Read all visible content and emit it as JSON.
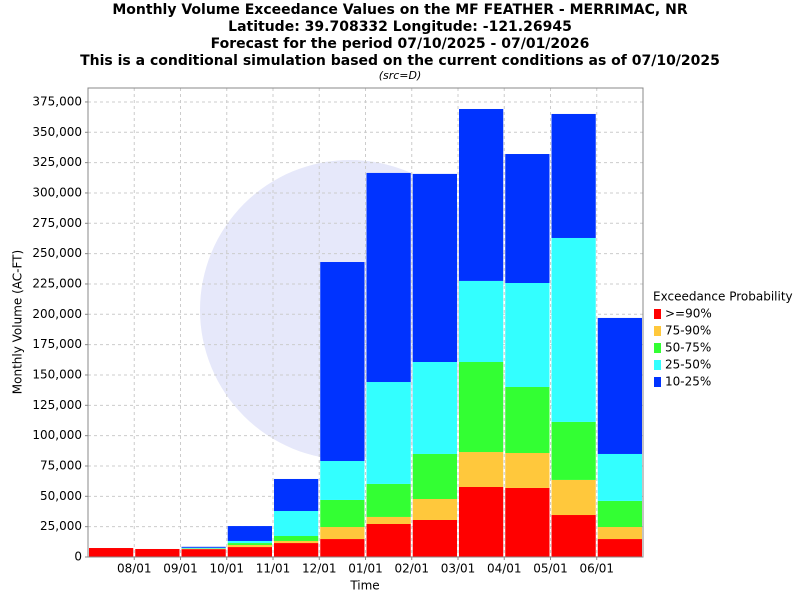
{
  "chart_data": {
    "type": "stacked_bar",
    "title_lines": [
      "Monthly Volume Exceedance Values on the MF FEATHER - MERRIMAC, NR",
      "Latitude: 39.708332 Longitude: -121.26945",
      "Forecast for the period 07/10/2025 - 07/01/2026",
      "This is a conditional simulation based on the current conditions as of 07/10/2025"
    ],
    "subtitle": "(src=D)",
    "x_label": "Time",
    "y_label": "Monthly Volume (AC-FT)",
    "legend_title": "Exceedance Probability",
    "legend": "right",
    "grid": true,
    "categories": [
      null,
      null,
      null,
      null,
      null,
      null,
      null,
      null,
      null,
      null,
      null,
      null
    ],
    "xtick_labels": [
      "08/01",
      "09/01",
      "10/01",
      "11/01",
      "12/01",
      "01/01",
      "02/01",
      "03/01",
      "04/01",
      "05/01",
      "06/01"
    ],
    "ylim": [
      0,
      386500
    ],
    "yticks": [
      0,
      {
        "value": 25000,
        "label": "25,000"
      },
      {
        "value": 50000,
        "label": "50,000"
      },
      {
        "value": 75000,
        "label": "75,000"
      },
      {
        "value": 100000,
        "label": "100,000"
      },
      {
        "value": 125000,
        "label": "125,000"
      },
      {
        "value": 150000,
        "label": "150,000"
      },
      {
        "value": 175000,
        "label": "175,000"
      },
      {
        "value": 200000,
        "label": "200,000"
      },
      {
        "value": 225000,
        "label": "225,000"
      },
      {
        "value": 250000,
        "label": "250,000"
      },
      {
        "value": 275000,
        "label": "275,000"
      },
      {
        "value": 300000,
        "label": "300,000"
      },
      {
        "value": 325000,
        "label": "325,000"
      },
      {
        "value": 350000,
        "label": "350,000"
      },
      {
        "value": 375000,
        "label": "375,000"
      }
    ],
    "series": [
      {
        "name": ">=90%",
        "color": "#ff0000",
        "values": [
          7400,
          6600,
          6500,
          8200,
          11500,
          14800,
          27200,
          30500,
          57700,
          56900,
          34600,
          14800
        ]
      },
      {
        "name": "75-90%",
        "color": "#ffc83c",
        "values": [
          0,
          0,
          300,
          1700,
          1700,
          9900,
          5800,
          17300,
          28800,
          28800,
          28900,
          9900
        ]
      },
      {
        "name": "50-75%",
        "color": "#33ff33",
        "values": [
          0,
          0,
          300,
          1600,
          4100,
          22300,
          27200,
          37100,
          74200,
          54400,
          47800,
          21500
        ]
      },
      {
        "name": "25-50%",
        "color": "#33ffff",
        "values": [
          0,
          0,
          500,
          1700,
          20600,
          32100,
          84000,
          75800,
          66800,
          85700,
          151600,
          38700
        ]
      },
      {
        "name": "10-25%",
        "color": "#0033ff",
        "values": [
          0,
          0,
          800,
          12300,
          26400,
          164000,
          172300,
          155000,
          141700,
          106300,
          102200,
          112100
        ]
      }
    ]
  }
}
